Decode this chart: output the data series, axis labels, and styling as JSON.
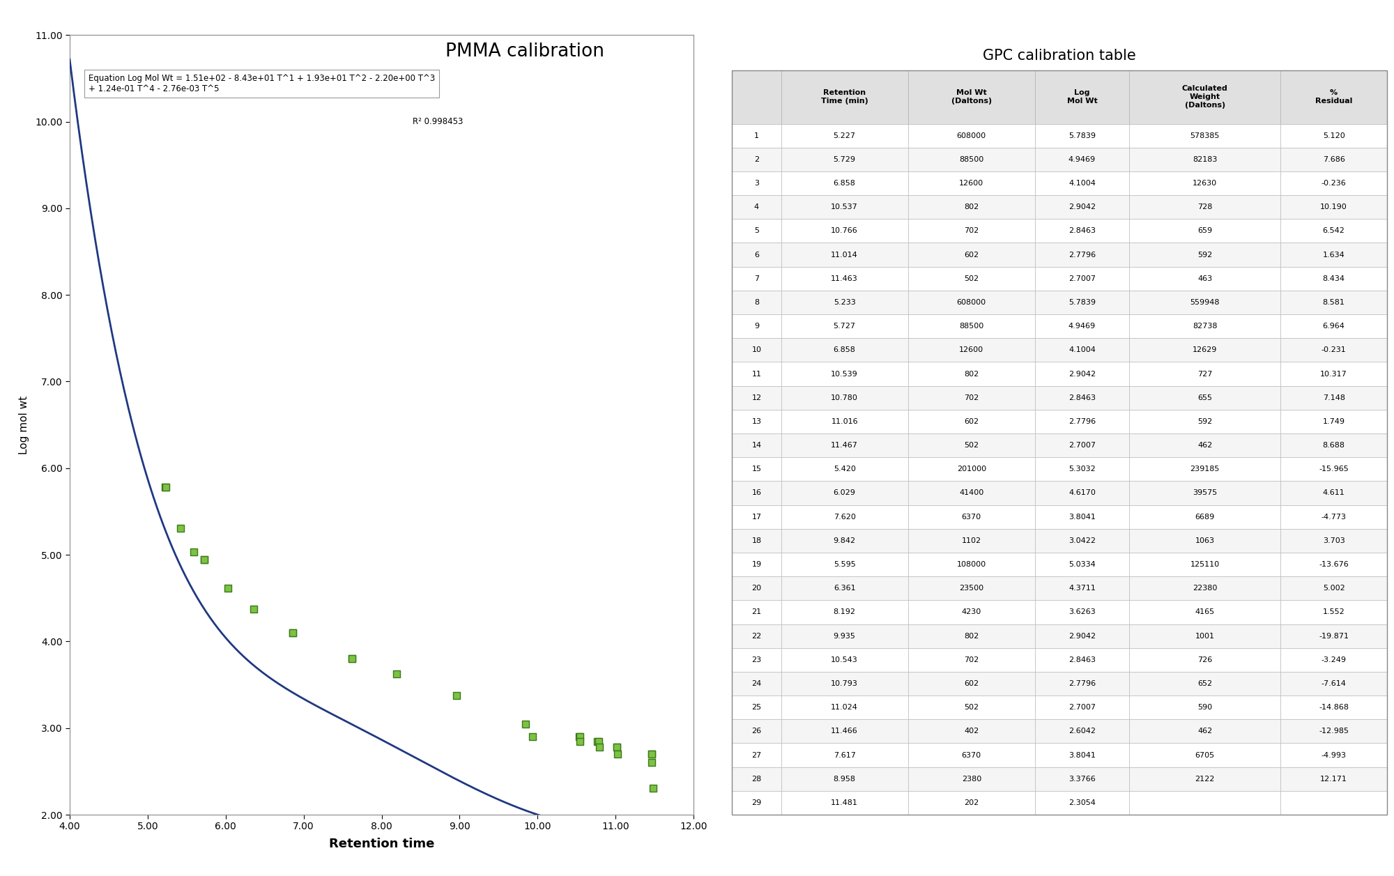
{
  "title_chart": "PMMA calibration",
  "title_table": "GPC calibration table",
  "xlabel": "Retention time",
  "ylabel": "Log mol wt",
  "equation_line1": "Equation Log Mol Wt = 1.51e+02 - 8.43e+01 T^1 + 1.93e+01 T^2 - 2.20e+00 T^3",
  "equation_line2": "+ 1.24e-01 T^4 - 2.76e-03 T^5",
  "r2_text": "R² 0.998453",
  "xlim": [
    4.0,
    12.0
  ],
  "ylim": [
    2.0,
    11.0
  ],
  "xticks": [
    4.0,
    5.0,
    6.0,
    7.0,
    8.0,
    9.0,
    10.0,
    11.0,
    12.0
  ],
  "yticks": [
    2.0,
    3.0,
    4.0,
    5.0,
    6.0,
    7.0,
    8.0,
    9.0,
    10.0,
    11.0
  ],
  "poly_coeffs": [
    151.0,
    -84.3,
    19.3,
    -2.2,
    0.124,
    -0.00276
  ],
  "scatter_x": [
    5.227,
    5.729,
    6.858,
    10.537,
    10.766,
    11.014,
    11.463,
    5.233,
    5.727,
    6.858,
    10.539,
    10.78,
    11.016,
    11.467,
    5.42,
    6.029,
    7.62,
    9.842,
    5.595,
    6.361,
    8.192,
    9.935,
    10.543,
    10.793,
    11.024,
    11.466,
    7.617,
    8.958,
    11.481
  ],
  "scatter_y": [
    5.7839,
    4.9469,
    4.1004,
    2.9042,
    2.8463,
    2.7796,
    2.7007,
    5.7839,
    4.9469,
    4.1004,
    2.9042,
    2.8463,
    2.7796,
    2.7007,
    5.3032,
    4.617,
    3.8041,
    3.0422,
    5.0334,
    4.3711,
    3.6263,
    2.9042,
    2.8463,
    2.7796,
    2.7007,
    2.6042,
    3.8041,
    3.3766,
    2.3054
  ],
  "marker_color": "#7dc242",
  "marker_edge_color": "#3a7a1a",
  "line_color": "#1f3882",
  "table_data": [
    [
      1,
      5.227,
      608000,
      5.7839,
      578385,
      5.12
    ],
    [
      2,
      5.729,
      88500,
      4.9469,
      82183,
      7.686
    ],
    [
      3,
      6.858,
      12600,
      4.1004,
      12630,
      -0.236
    ],
    [
      4,
      10.537,
      802,
      2.9042,
      728,
      10.19
    ],
    [
      5,
      10.766,
      702,
      2.8463,
      659,
      6.542
    ],
    [
      6,
      11.014,
      602,
      2.7796,
      592,
      1.634
    ],
    [
      7,
      11.463,
      502,
      2.7007,
      463,
      8.434
    ],
    [
      8,
      5.233,
      608000,
      5.7839,
      559948,
      8.581
    ],
    [
      9,
      5.727,
      88500,
      4.9469,
      82738,
      6.964
    ],
    [
      10,
      6.858,
      12600,
      4.1004,
      12629,
      -0.231
    ],
    [
      11,
      10.539,
      802,
      2.9042,
      727,
      10.317
    ],
    [
      12,
      10.78,
      702,
      2.8463,
      655,
      7.148
    ],
    [
      13,
      11.016,
      602,
      2.7796,
      592,
      1.749
    ],
    [
      14,
      11.467,
      502,
      2.7007,
      462,
      8.688
    ],
    [
      15,
      5.42,
      201000,
      5.3032,
      239185,
      -15.965
    ],
    [
      16,
      6.029,
      41400,
      4.617,
      39575,
      4.611
    ],
    [
      17,
      7.62,
      6370,
      3.8041,
      6689,
      -4.773
    ],
    [
      18,
      9.842,
      1102,
      3.0422,
      1063,
      3.703
    ],
    [
      19,
      5.595,
      108000,
      5.0334,
      125110,
      -13.676
    ],
    [
      20,
      6.361,
      23500,
      4.3711,
      22380,
      5.002
    ],
    [
      21,
      8.192,
      4230,
      3.6263,
      4165,
      1.552
    ],
    [
      22,
      9.935,
      802,
      2.9042,
      1001,
      -19.871
    ],
    [
      23,
      10.543,
      702,
      2.8463,
      726,
      -3.249
    ],
    [
      24,
      10.793,
      602,
      2.7796,
      652,
      -7.614
    ],
    [
      25,
      11.024,
      502,
      2.7007,
      590,
      -14.868
    ],
    [
      26,
      11.466,
      402,
      2.6042,
      462,
      -12.985
    ],
    [
      27,
      7.617,
      6370,
      3.8041,
      6705,
      -4.993
    ],
    [
      28,
      8.958,
      2380,
      3.3766,
      2122,
      12.171
    ],
    [
      29,
      11.481,
      202,
      2.3054,
      "",
      ""
    ]
  ],
  "background_color": "#ffffff"
}
